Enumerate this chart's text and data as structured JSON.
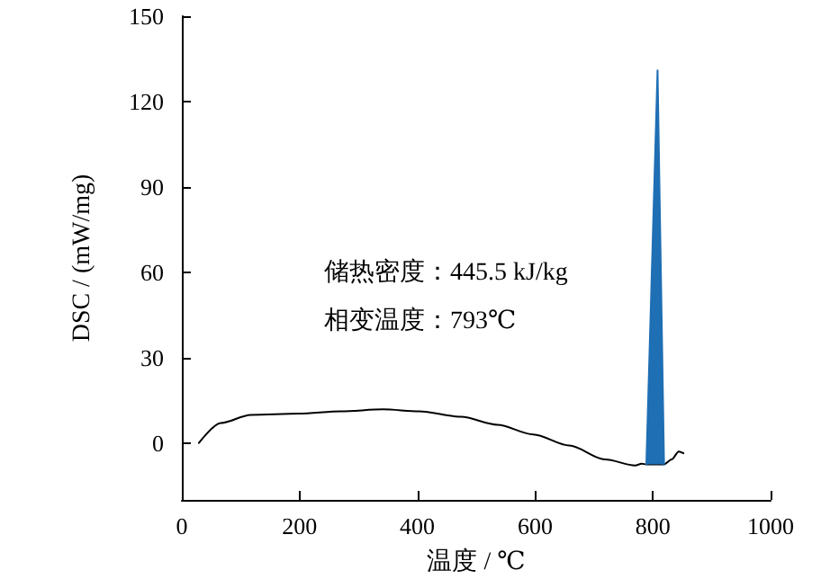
{
  "chart_data": {
    "type": "line",
    "xlabel": "温度 / ℃",
    "ylabel": "DSC / (mW/mg)",
    "xlim": [
      0,
      1000
    ],
    "xticks": [
      0,
      200,
      400,
      600,
      800,
      1000
    ],
    "ylim": [
      -20,
      150
    ],
    "yticks": [
      0,
      30,
      60,
      90,
      120,
      150
    ],
    "annotations": [
      "储热密度：445.5 kJ/kg",
      "相变温度：793℃"
    ],
    "series": [
      {
        "color": "#000000",
        "x": [
          29,
          66,
          117,
          199,
          270,
          342,
          403,
          474,
          536,
          597,
          658,
          719,
          770,
          781,
          789,
          819,
          832,
          844,
          852
        ],
        "values": [
          0,
          7,
          9.9,
          10.3,
          11.1,
          11.8,
          11.1,
          9.2,
          6.4,
          3,
          -0.9,
          -5.8,
          -7.9,
          -7.3,
          -7.5,
          -7.5,
          -5.8,
          -3,
          -3.6
        ]
      },
      {
        "type": "area",
        "color": "#1f6fb4",
        "x": [
          789,
          808,
          819
        ],
        "values": [
          -7.5,
          131,
          -7.5
        ]
      }
    ],
    "grid": false,
    "marker": "none",
    "line_style": "solid"
  }
}
